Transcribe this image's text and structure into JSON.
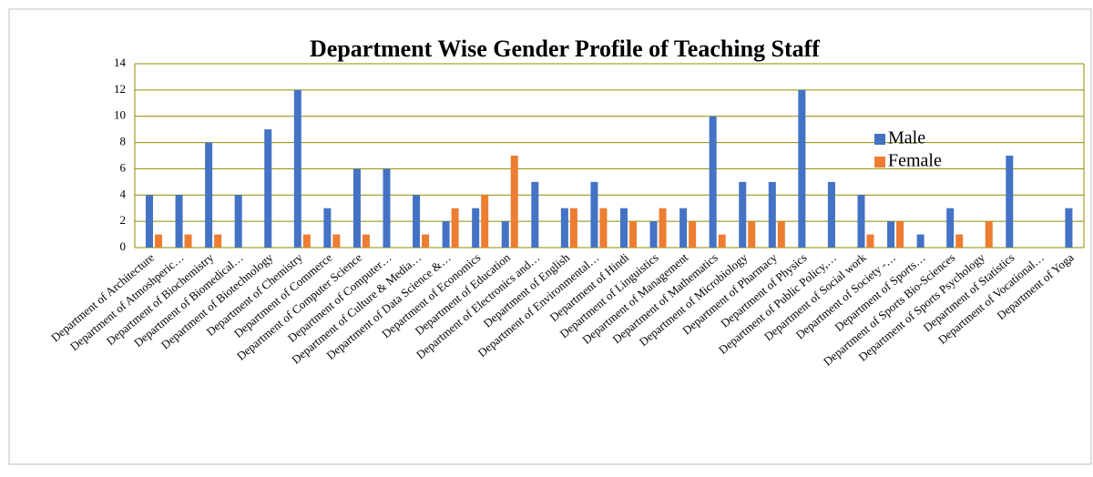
{
  "chart_data": {
    "type": "bar",
    "title": "Department Wise Gender Profile of Teaching Staff",
    "categories": [
      "Department of Architecture",
      "Department of Atmoshperic…",
      "Department of Biochemistry",
      "Department of Biomedical…",
      "Department of Biotechnology",
      "Department of Chemistry",
      "Department of Commerce",
      "Department of Computer Science",
      "Department of Computer…",
      "Department of Culture & Media…",
      "Department of Data Science &…",
      "Department of Economics",
      "Department of Education",
      "Department of Electronics and…",
      "Department of English",
      "Department of Environmental…",
      "Department of Hindi",
      "Department of Linguistics",
      "Department of Management",
      "Department of Mathematics",
      "Department of Microbiology",
      "Department of Pharmacy",
      "Department of Physics",
      "Department of Public Policy,…",
      "Department of Social work",
      "Department of Society -…",
      "Department of Sports…",
      "Department of Sports Bio-Sciences",
      "Department of Sports Psychology",
      "Department of Statistics",
      "Department of Vocational…",
      "Department of Yoga"
    ],
    "series": [
      {
        "name": "Male",
        "color": "#4472c4",
        "values": [
          4,
          4,
          8,
          4,
          9,
          12,
          3,
          6,
          6,
          4,
          2,
          3,
          2,
          5,
          3,
          5,
          3,
          2,
          3,
          10,
          5,
          5,
          12,
          5,
          4,
          2,
          1,
          3,
          0,
          7,
          0,
          3
        ]
      },
      {
        "name": "Female",
        "color": "#ed7d31",
        "values": [
          1,
          1,
          1,
          0,
          0,
          1,
          1,
          1,
          0,
          1,
          3,
          4,
          7,
          0,
          3,
          3,
          2,
          3,
          2,
          1,
          2,
          2,
          0,
          0,
          1,
          2,
          0,
          1,
          2,
          0,
          0,
          0
        ]
      }
    ],
    "ylim": [
      0,
      14
    ],
    "yticks": [
      0,
      2,
      4,
      6,
      8,
      10,
      12,
      14
    ],
    "grid": true,
    "legend": "upper right"
  }
}
